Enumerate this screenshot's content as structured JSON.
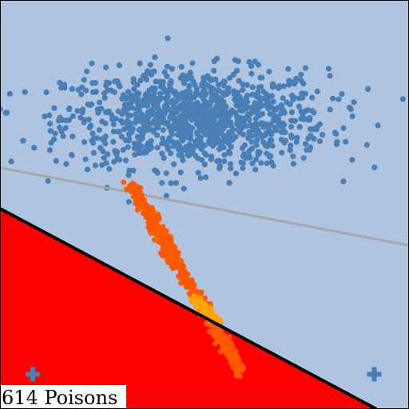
{
  "chart_data": {
    "type": "scatter",
    "label_text": "614 Poisons",
    "colors": {
      "background": "#afc4e0",
      "region": "#ff0000",
      "clean_points": "#4a7fb5",
      "poison_points_a": "#ff5a00",
      "poison_points_b": "#ffa500",
      "boundary_line": "#000000",
      "secondary_line": "#a6a6a6",
      "cross_marker": "#4a7fb5"
    },
    "xlim": [
      0,
      1
    ],
    "ylim": [
      0,
      1
    ],
    "clean_cluster": {
      "count": 1100,
      "center": [
        0.48,
        0.71
      ],
      "spread": [
        0.16,
        0.06
      ]
    },
    "poison_stream": {
      "count": 614,
      "start": [
        0.32,
        0.55
      ],
      "end": [
        0.59,
        0.09
      ]
    },
    "poison_stream_highlight": {
      "count": 60,
      "start": [
        0.47,
        0.27
      ],
      "end": [
        0.53,
        0.22
      ]
    },
    "boundary_line": {
      "points": [
        [
          0.0,
          0.49
        ],
        [
          0.92,
          0.0
        ]
      ]
    },
    "secondary_line": {
      "points": [
        [
          0.0,
          0.59
        ],
        [
          1.0,
          0.4
        ]
      ]
    },
    "markers": [
      {
        "type": "cross",
        "x": 0.08,
        "y": 0.085
      },
      {
        "type": "cross",
        "x": 0.915,
        "y": 0.085
      }
    ]
  }
}
